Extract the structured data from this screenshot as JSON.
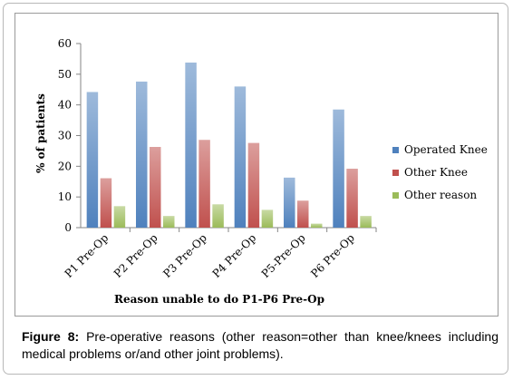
{
  "caption": {
    "label": "Figure 8:",
    "text": " Pre-operative reasons (other reason=other than knee/knees including medical problems or/and other joint problems)."
  },
  "chart_data": {
    "type": "bar",
    "title": "",
    "xlabel": "Reason unable to do P1-P6 Pre-Op",
    "ylabel": "% of patients",
    "ylim": [
      0,
      60
    ],
    "yticks": [
      "0",
      "10",
      "20",
      "30",
      "40",
      "50",
      "60"
    ],
    "grid": false,
    "legend_position": "right",
    "categories": [
      "P1 Pre-Op",
      "P2 Pre-Op",
      "P3 Pre-Op",
      "P4 Pre-Op",
      "P5-Pre-Op",
      "P6 Pre-Op"
    ],
    "series": [
      {
        "name": "Operated Knee",
        "color": "#4f81bd",
        "values": [
          44.2,
          47.6,
          53.8,
          46.0,
          16.3,
          38.5
        ]
      },
      {
        "name": "Other Knee",
        "color": "#c0504d",
        "values": [
          16.1,
          26.3,
          28.6,
          27.6,
          8.8,
          19.2
        ]
      },
      {
        "name": "Other reason",
        "color": "#9bbb59",
        "values": [
          7.0,
          3.8,
          7.6,
          5.8,
          1.3,
          3.8
        ]
      }
    ]
  }
}
